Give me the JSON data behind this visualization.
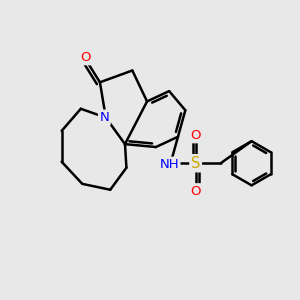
{
  "background_color": "#e8e8e8",
  "bond_color": "#000000",
  "bond_width": 1.8,
  "atom_colors": {
    "N": "#0000ff",
    "O": "#ff0000",
    "S": "#ccaa00",
    "C": "#000000",
    "H": "#555555"
  },
  "font_size_atom": 9.5
}
